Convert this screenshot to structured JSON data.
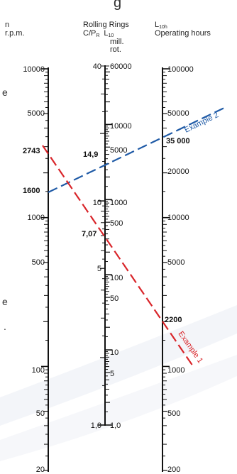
{
  "page": {
    "title_fragment": "g",
    "left_cut_text": [
      "e",
      "e",
      "."
    ]
  },
  "columns": [
    {
      "id": "speed",
      "header_lines": [
        "n",
        "r.p.m."
      ]
    },
    {
      "id": "capacity",
      "header_lines": [
        "Rolling Rings",
        "C/P_R  L10",
        "mill.",
        "rot."
      ]
    },
    {
      "id": "life",
      "header_lines": [
        "L10h",
        "Operating hours"
      ]
    }
  ],
  "scales": {
    "speed": {
      "range": [
        20,
        10000
      ],
      "labels": [
        "10000",
        "5000",
        "1000",
        "500",
        "100",
        "50",
        "20"
      ]
    },
    "cp_ratio": {
      "range": [
        1,
        40
      ],
      "labels": [
        "40",
        "10",
        "5",
        "1,0"
      ]
    },
    "mill_rot": {
      "range": [
        1,
        60000
      ],
      "labels": [
        "60000",
        "10000",
        "5000",
        "1000",
        "500",
        "100",
        "50",
        "10",
        "5",
        "1,0"
      ]
    },
    "hours": {
      "range": [
        200,
        100000
      ],
      "labels": [
        "100000",
        "50000",
        "20000",
        "10000",
        "5000",
        "1000",
        "500",
        "200"
      ]
    }
  },
  "examples": [
    {
      "name": "Example 1",
      "color": "#d9252a",
      "speed_rpm": 2743,
      "cp_ratio": 7.07,
      "life_hours": 2200,
      "labels": {
        "speed": "2743",
        "cp": "7,07",
        "hours": "2200"
      }
    },
    {
      "name": "Example 2",
      "color": "#1f5aa6",
      "speed_rpm": 1600,
      "cp_ratio": 14.9,
      "life_hours": 35000,
      "labels": {
        "speed": "1600",
        "cp": "14,9",
        "hours": "35 000"
      }
    }
  ]
}
